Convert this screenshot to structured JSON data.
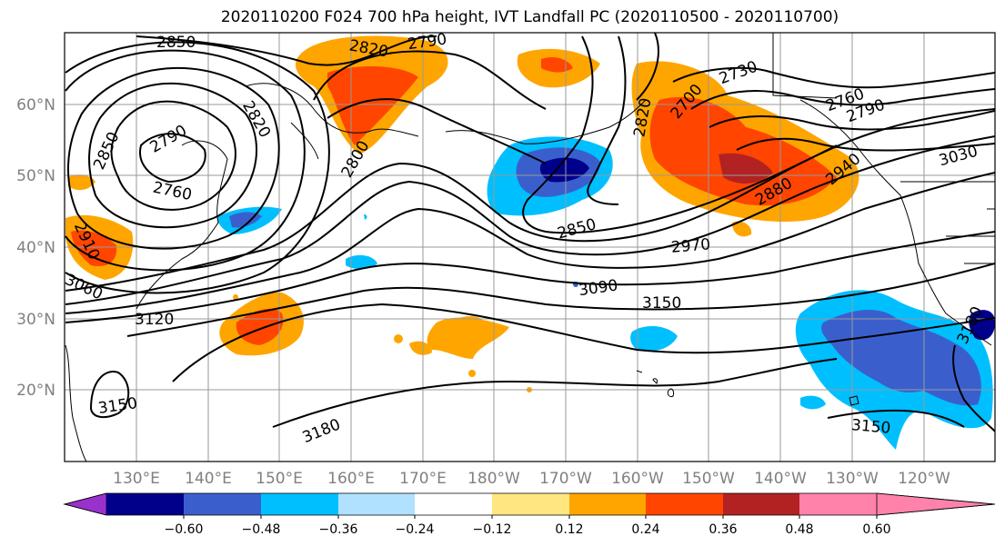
{
  "title": "2020110200 F024 700 hPa height, IVT Landfall PC (2020110500 - 2020110700)",
  "lat_labels": [
    "60°N",
    "50°N",
    "40°N",
    "30°N",
    "20°N"
  ],
  "lon_labels": [
    "130°E",
    "140°E",
    "150°E",
    "160°E",
    "170°E",
    "180°W",
    "170°W",
    "160°W",
    "150°W",
    "140°W",
    "130°W",
    "120°W"
  ],
  "contour_labels": [
    "2850",
    "2820",
    "2790",
    "2730",
    "2790",
    "2820",
    "2850",
    "2760",
    "2800",
    "2910",
    "3060",
    "3120",
    "3150",
    "3180",
    "2850",
    "2970",
    "3090",
    "3150",
    "2880",
    "2940",
    "2760",
    "2790",
    "3030",
    "3180",
    "3150",
    "2700",
    "2820"
  ],
  "colorbar": {
    "tick_labels": [
      "−0.60",
      "−0.48",
      "−0.36",
      "−0.24",
      "−0.12",
      "0.12",
      "0.24",
      "0.36",
      "0.48",
      "0.60"
    ],
    "colors": [
      "#9932cc",
      "#00008b",
      "#3a5fcd",
      "#00bfff",
      "#b0e2ff",
      "#ffffff",
      "#ffe680",
      "#ffa500",
      "#ff4500",
      "#b22222",
      "#ff82ab"
    ]
  }
}
